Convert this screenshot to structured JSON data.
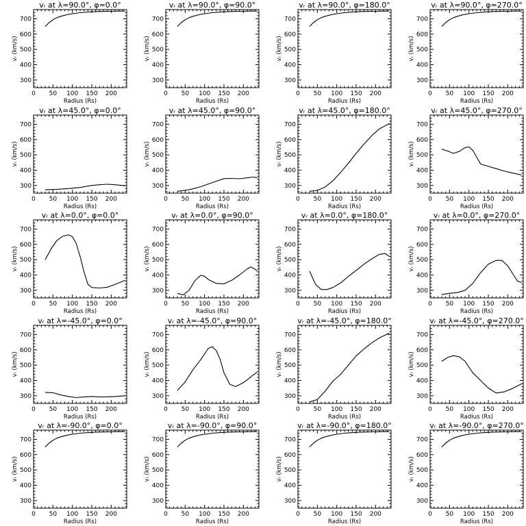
{
  "chart_data": {
    "type": "line",
    "layout": "5x4 grid",
    "xlim": [
      0,
      240
    ],
    "ylim": [
      250,
      760
    ],
    "xticks": [
      0,
      50,
      100,
      150,
      200
    ],
    "yticks": [
      300,
      400,
      500,
      600,
      700
    ],
    "xticklabels": [
      "0",
      "50",
      "100",
      "150",
      "200"
    ],
    "yticklabels": [
      "300",
      "400",
      "500",
      "600",
      "700"
    ],
    "xlabel": "Radius (Rs)",
    "ylabel": "vᵣ (km/s)",
    "panels": [
      {
        "title": "vᵣ at λ=90.0°, φ=0.0°",
        "x": [
          30,
          40,
          50,
          60,
          70,
          80,
          90,
          100,
          120,
          140,
          160,
          180,
          200,
          220,
          236
        ],
        "y": [
          650,
          675,
          694,
          707,
          716,
          723,
          729,
          733,
          740,
          744,
          747,
          748,
          749,
          750,
          750
        ]
      },
      {
        "title": "vᵣ at λ=90.0°, φ=90.0°",
        "x": [
          30,
          40,
          50,
          60,
          70,
          80,
          90,
          100,
          120,
          140,
          160,
          180,
          200,
          220,
          236
        ],
        "y": [
          650,
          675,
          694,
          707,
          716,
          723,
          729,
          733,
          740,
          744,
          747,
          748,
          749,
          750,
          750
        ]
      },
      {
        "title": "vᵣ at λ=90.0°, φ=180.0°",
        "x": [
          30,
          40,
          50,
          60,
          70,
          80,
          90,
          100,
          120,
          140,
          160,
          180,
          200,
          220,
          236
        ],
        "y": [
          650,
          675,
          694,
          707,
          716,
          723,
          729,
          733,
          740,
          744,
          747,
          748,
          749,
          750,
          750
        ]
      },
      {
        "title": "vᵣ at λ=90.0°, φ=270.0°",
        "x": [
          30,
          40,
          50,
          60,
          70,
          80,
          90,
          100,
          120,
          140,
          160,
          180,
          200,
          220,
          236
        ],
        "y": [
          650,
          675,
          694,
          707,
          716,
          723,
          729,
          733,
          740,
          744,
          747,
          748,
          749,
          750,
          750
        ]
      },
      {
        "title": "vᵣ at λ=45.0°, φ=0.0°",
        "x": [
          30,
          60,
          90,
          120,
          150,
          170,
          190,
          210,
          236
        ],
        "y": [
          272,
          275,
          280,
          287,
          300,
          305,
          308,
          305,
          298
        ]
      },
      {
        "title": "vᵣ at λ=45.0°, φ=90.0°",
        "x": [
          30,
          50,
          70,
          90,
          110,
          130,
          150,
          170,
          190,
          210,
          225,
          236
        ],
        "y": [
          262,
          268,
          278,
          292,
          310,
          328,
          345,
          346,
          344,
          350,
          355,
          350
        ]
      },
      {
        "title": "vᵣ at λ=45.0°, φ=180.0°",
        "x": [
          30,
          50,
          70,
          90,
          110,
          130,
          150,
          170,
          190,
          210,
          236
        ],
        "y": [
          262,
          268,
          290,
          330,
          385,
          445,
          510,
          570,
          625,
          670,
          705
        ]
      },
      {
        "title": "vᵣ at λ=45.0°, φ=270.0°",
        "x": [
          30,
          45,
          60,
          75,
          90,
          100,
          110,
          120,
          130,
          150,
          170,
          190,
          210,
          236
        ],
        "y": [
          537,
          525,
          510,
          522,
          548,
          552,
          530,
          485,
          440,
          425,
          410,
          395,
          383,
          368
        ]
      },
      {
        "title": "vᵣ at λ=0.0°, φ=0.0°",
        "x": [
          30,
          45,
          60,
          75,
          90,
          100,
          110,
          120,
          130,
          140,
          150,
          170,
          190,
          210,
          236
        ],
        "y": [
          500,
          570,
          625,
          653,
          662,
          650,
          605,
          520,
          420,
          340,
          318,
          315,
          320,
          338,
          365
        ]
      },
      {
        "title": "vᵣ at λ=0.0°, φ=90.0°",
        "x": [
          30,
          45,
          60,
          75,
          90,
          100,
          110,
          130,
          150,
          170,
          190,
          210,
          220,
          230,
          236
        ],
        "y": [
          280,
          270,
          300,
          362,
          398,
          392,
          370,
          345,
          342,
          365,
          400,
          440,
          452,
          438,
          425
        ]
      },
      {
        "title": "vᵣ at λ=0.0°, φ=180.0°",
        "x": [
          30,
          45,
          60,
          75,
          90,
          110,
          130,
          150,
          170,
          190,
          210,
          225,
          236
        ],
        "y": [
          425,
          340,
          305,
          305,
          318,
          348,
          390,
          430,
          470,
          505,
          535,
          540,
          520
        ]
      },
      {
        "title": "vᵣ at λ=0.0°, φ=270.0°",
        "x": [
          30,
          50,
          70,
          90,
          110,
          130,
          150,
          170,
          185,
          200,
          215,
          225,
          236
        ],
        "y": [
          272,
          280,
          285,
          300,
          345,
          415,
          470,
          495,
          495,
          460,
          400,
          360,
          350
        ]
      },
      {
        "title": "vᵣ at λ=-45.0°, φ=0.0°",
        "x": [
          30,
          50,
          70,
          90,
          110,
          130,
          150,
          170,
          190,
          210,
          236
        ],
        "y": [
          322,
          320,
          305,
          295,
          288,
          292,
          295,
          292,
          293,
          295,
          300
        ]
      },
      {
        "title": "vᵣ at λ=-45.0°, φ=90.0°",
        "x": [
          30,
          50,
          70,
          90,
          110,
          120,
          130,
          140,
          150,
          165,
          180,
          200,
          220,
          236
        ],
        "y": [
          335,
          390,
          470,
          535,
          610,
          620,
          595,
          540,
          450,
          375,
          360,
          385,
          425,
          455
        ]
      },
      {
        "title": "vᵣ at λ=-45.0°, φ=180.0°",
        "x": [
          30,
          50,
          70,
          90,
          110,
          130,
          150,
          170,
          190,
          210,
          236
        ],
        "y": [
          260,
          275,
          330,
          395,
          440,
          500,
          560,
          605,
          645,
          678,
          710
        ]
      },
      {
        "title": "vᵣ at λ=-45.0°, φ=270.0°",
        "x": [
          30,
          45,
          60,
          75,
          90,
          110,
          130,
          150,
          170,
          190,
          210,
          236
        ],
        "y": [
          525,
          550,
          562,
          555,
          525,
          450,
          400,
          350,
          318,
          325,
          345,
          378
        ]
      },
      {
        "title": "vᵣ at λ=-90.0°, φ=0.0°",
        "x": [
          30,
          40,
          50,
          60,
          70,
          80,
          90,
          100,
          120,
          140,
          160,
          180,
          200,
          220,
          236
        ],
        "y": [
          650,
          675,
          694,
          707,
          716,
          723,
          729,
          733,
          740,
          744,
          747,
          748,
          749,
          750,
          750
        ]
      },
      {
        "title": "vᵣ at λ=-90.0°, φ=90.0°",
        "x": [
          30,
          40,
          50,
          60,
          70,
          80,
          90,
          100,
          120,
          140,
          160,
          180,
          200,
          220,
          236
        ],
        "y": [
          650,
          675,
          694,
          707,
          716,
          723,
          729,
          733,
          740,
          744,
          747,
          748,
          749,
          750,
          750
        ]
      },
      {
        "title": "vᵣ at λ=-90.0°, φ=180.0°",
        "x": [
          30,
          40,
          50,
          60,
          70,
          80,
          90,
          100,
          120,
          140,
          160,
          180,
          200,
          220,
          236
        ],
        "y": [
          650,
          675,
          694,
          707,
          716,
          723,
          729,
          733,
          740,
          744,
          747,
          748,
          749,
          750,
          750
        ]
      },
      {
        "title": "vᵣ at λ=-90.0°, φ=270.0°",
        "x": [
          30,
          40,
          50,
          60,
          70,
          80,
          90,
          100,
          120,
          140,
          160,
          180,
          200,
          220,
          236
        ],
        "y": [
          650,
          675,
          694,
          707,
          716,
          723,
          729,
          733,
          740,
          744,
          747,
          748,
          749,
          750,
          750
        ]
      }
    ]
  }
}
